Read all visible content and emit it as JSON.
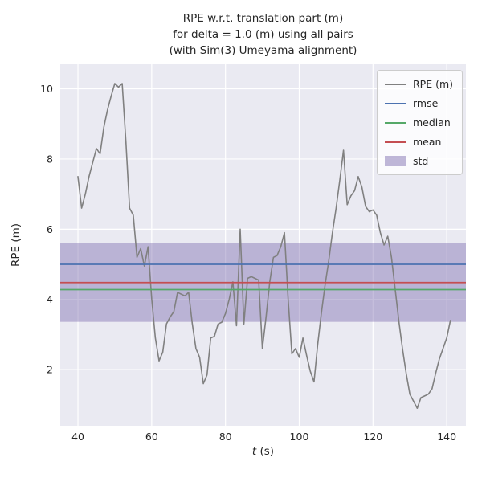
{
  "chart_data": {
    "type": "line",
    "title": "RPE w.r.t. translation part (m)\nfor delta = 1.0 (m) using all pairs\n(with Sim(3) Umeyama alignment)",
    "xlabel_var": "t",
    "xlabel_unit": " (s)",
    "ylabel": "RPE (m)",
    "xlim": [
      35.2,
      145.2
    ],
    "ylim": [
      0.4,
      10.7
    ],
    "xticks": [
      40,
      60,
      80,
      100,
      120,
      140
    ],
    "yticks": [
      2,
      4,
      6,
      8,
      10
    ],
    "grid": true,
    "background": "#EAEAF2",
    "grid_color": "#FFFFFF",
    "legend_position": "upper right",
    "series": [
      {
        "name": "RPE (m)",
        "type": "line",
        "color": "#808080",
        "x": [
          40,
          41,
          42,
          43,
          44,
          45,
          46,
          47,
          48,
          49,
          50,
          51,
          52,
          53,
          54,
          55,
          56,
          57,
          58,
          59,
          60,
          61,
          62,
          63,
          64,
          65,
          66,
          67,
          68,
          69,
          70,
          71,
          72,
          73,
          74,
          75,
          76,
          77,
          78,
          79,
          80,
          81,
          82,
          83,
          84,
          85,
          86,
          87,
          88,
          89,
          90,
          91,
          92,
          93,
          94,
          95,
          96,
          97,
          98,
          99,
          100,
          101,
          102,
          103,
          104,
          105,
          106,
          107,
          108,
          109,
          110,
          111,
          112,
          113,
          114,
          115,
          116,
          117,
          118,
          119,
          120,
          121,
          122,
          123,
          124,
          125,
          126,
          127,
          128,
          129,
          130,
          131,
          132,
          133,
          134,
          135,
          136,
          137,
          138,
          139,
          140,
          141
        ],
        "y": [
          7.5,
          6.6,
          7.0,
          7.5,
          7.9,
          8.3,
          8.15,
          8.9,
          9.4,
          9.8,
          10.15,
          10.05,
          10.15,
          8.5,
          6.6,
          6.4,
          5.2,
          5.45,
          4.95,
          5.5,
          4.0,
          2.9,
          2.25,
          2.5,
          3.3,
          3.5,
          3.65,
          4.2,
          4.15,
          4.1,
          4.2,
          3.3,
          2.6,
          2.35,
          1.6,
          1.85,
          2.9,
          2.95,
          3.3,
          3.35,
          3.6,
          4.0,
          4.5,
          3.25,
          6.0,
          3.3,
          4.6,
          4.65,
          4.6,
          4.55,
          2.6,
          3.5,
          4.5,
          5.2,
          5.25,
          5.5,
          5.9,
          4.0,
          2.45,
          2.6,
          2.35,
          2.9,
          2.4,
          1.95,
          1.65,
          2.7,
          3.6,
          4.4,
          5.1,
          5.9,
          6.6,
          7.4,
          8.25,
          6.7,
          6.95,
          7.1,
          7.5,
          7.2,
          6.65,
          6.5,
          6.55,
          6.4,
          5.9,
          5.55,
          5.8,
          5.2,
          4.3,
          3.4,
          2.6,
          1.9,
          1.3,
          1.1,
          0.9,
          1.2,
          1.25,
          1.3,
          1.45,
          1.9,
          2.3,
          2.6,
          2.9,
          3.4
        ]
      },
      {
        "name": "rmse",
        "type": "hline",
        "color": "#4C72B0",
        "value": 5.0
      },
      {
        "name": "median",
        "type": "hline",
        "color": "#55A868",
        "value": 4.28
      },
      {
        "name": "mean",
        "type": "hline",
        "color": "#C44E52",
        "value": 4.48
      },
      {
        "name": "std",
        "type": "band",
        "color": "#8172B2",
        "range": [
          3.36,
          5.6
        ]
      }
    ]
  }
}
